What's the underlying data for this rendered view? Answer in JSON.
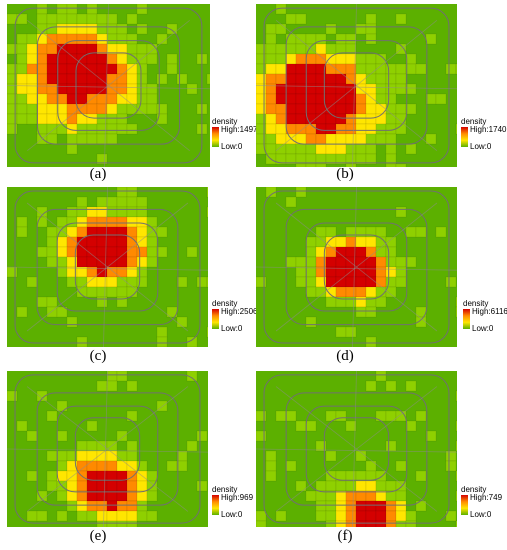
{
  "legend_title": "density",
  "colors": {
    "background": "#5cb000",
    "low": "#8fd000",
    "mid": "#ffe600",
    "high_mid": "#ff8a00",
    "high": "#d40000",
    "road": "#707070"
  },
  "panels": [
    {
      "id": "a",
      "caption": "(a)",
      "high_label": "High:1497",
      "low_label": "Low:0",
      "hotspot": "west of center"
    },
    {
      "id": "b",
      "caption": "(b)",
      "high_label": "High:1740",
      "low_label": "Low:0",
      "hotspot": "west of center"
    },
    {
      "id": "c",
      "caption": "(c)",
      "high_label": "High:2506",
      "low_label": "Low:0",
      "hotspot": "north of center"
    },
    {
      "id": "d",
      "caption": "(d)",
      "high_label": "High:6116",
      "low_label": "Low:0",
      "hotspot": "center"
    },
    {
      "id": "e",
      "caption": "(e)",
      "high_label": "High:969",
      "low_label": "Low:0",
      "hotspot": "south of center"
    },
    {
      "id": "f",
      "caption": "(f)",
      "high_label": "High:749",
      "low_label": "Low:0",
      "hotspot": "far south"
    }
  ]
}
